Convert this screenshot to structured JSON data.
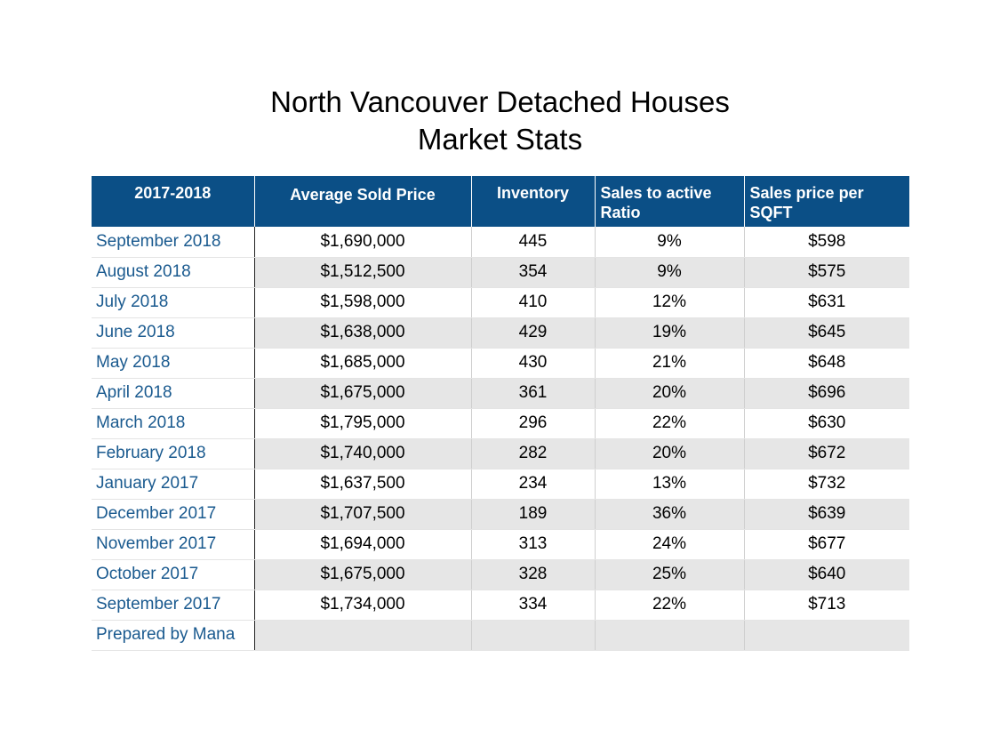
{
  "title": {
    "line1": "North Vancouver Detached Houses",
    "line2": "Market Stats"
  },
  "table": {
    "headers": [
      "2017-2018",
      "Average Sold Price",
      "Inventory",
      "Sales to active Ratio",
      "Sales price per SQFT"
    ],
    "rows": [
      [
        "September 2018",
        "$1,690,000",
        "445",
        "9%",
        "$598"
      ],
      [
        "August 2018",
        "$1,512,500",
        "354",
        "9%",
        "$575"
      ],
      [
        "July 2018",
        "$1,598,000",
        "410",
        "12%",
        "$631"
      ],
      [
        "June 2018",
        "$1,638,000",
        "429",
        "19%",
        "$645"
      ],
      [
        "May 2018",
        "$1,685,000",
        "430",
        "21%",
        "$648"
      ],
      [
        "April  2018",
        "$1,675,000",
        "361",
        "20%",
        "$696"
      ],
      [
        "March 2018",
        "$1,795,000",
        "296",
        "22%",
        "$630"
      ],
      [
        "February 2018",
        "$1,740,000",
        "282",
        "20%",
        "$672"
      ],
      [
        "January 2017",
        "$1,637,500",
        "234",
        "13%",
        "$732"
      ],
      [
        "December 2017",
        "$1,707,500",
        "189",
        "36%",
        "$639"
      ],
      [
        "November 2017",
        "$1,694,000",
        "313",
        "24%",
        "$677"
      ],
      [
        "October 2017",
        "$1,675,000",
        "328",
        "25%",
        "$640"
      ],
      [
        "September 2017",
        "$1,734,000",
        "334",
        "22%",
        "$713"
      ]
    ],
    "footer": "Prepared by Mana"
  },
  "colors": {
    "header_bg": "#0b4f86",
    "header_text": "#ffffff",
    "month_text": "#1a5a8f",
    "alt_row_bg": "#e6e6e6"
  }
}
